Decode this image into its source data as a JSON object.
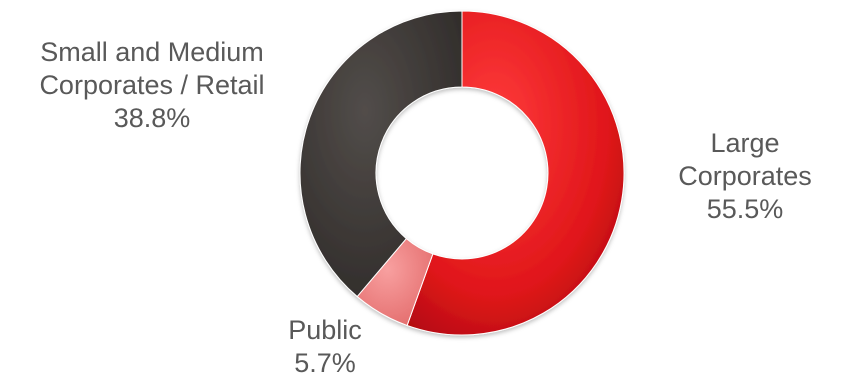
{
  "chart_data": {
    "type": "pie",
    "style": "donut",
    "title": "",
    "legend": "none",
    "start_angle_deg": 0,
    "direction": "clockwise",
    "slices": [
      {
        "key": "large",
        "label_lines": [
          "Large",
          "Corporates"
        ],
        "value": 55.5,
        "value_label": "55.5%",
        "color": "#e8161b"
      },
      {
        "key": "public",
        "label_lines": [
          "Public"
        ],
        "value": 5.7,
        "value_label": "5.7%",
        "color": "#f08080"
      },
      {
        "key": "smb",
        "label_lines": [
          "Small and Medium",
          "Corporates / Retail"
        ],
        "value": 38.8,
        "value_label": "38.8%",
        "color": "#3e3a38"
      }
    ]
  }
}
